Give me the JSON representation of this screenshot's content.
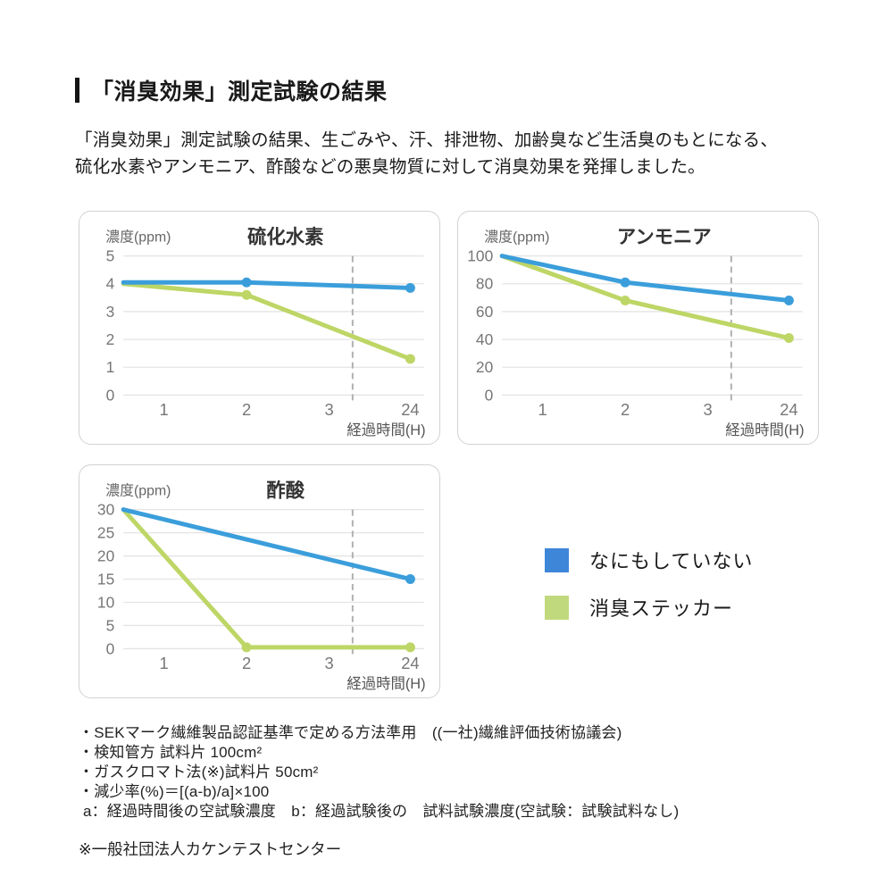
{
  "page": {
    "title": "「消臭効果」測定試験の結果",
    "intro_line1": "「消臭効果」測定試験の結果、生ごみや、汗、排泄物、加齢臭など生活臭のもとになる、",
    "intro_line2": "硫化水素やアンモニア、酢酸などの悪臭物質に対して消臭効果を発揮しました。"
  },
  "colors": {
    "blue": "#3B9EDB",
    "green": "#BDD666",
    "legend_blue": "#3E86D8",
    "legend_green": "#C1D97D",
    "grid": "#E4E4E4",
    "dashed": "#B0B0B0",
    "axis_text": "#777777",
    "unit_text": "#666666",
    "title_text": "#333333",
    "card_border": "#D2D2D2"
  },
  "legend": {
    "items": [
      {
        "label": "なにもしていない",
        "color": "#3E86D8"
      },
      {
        "label": "消臭ステッカー",
        "color": "#C1D97D"
      }
    ]
  },
  "chart_data": [
    {
      "type": "line",
      "key": "hydrogen-sulfide",
      "title": "硫化水素",
      "ylabel": "濃度(ppm)",
      "xlabel": "経過時間(H)",
      "x_ticks": [
        "1",
        "2",
        "3",
        "24"
      ],
      "y_ticks": [
        0,
        1,
        2,
        3,
        4,
        5
      ],
      "ylim": [
        0,
        5
      ],
      "dashed_guide": "vertical dashed line between 3 and 24",
      "series": [
        {
          "name": "なにもしていない",
          "color": "blue",
          "points": [
            {
              "x": "start",
              "y": 4.05
            },
            {
              "x": "2",
              "y": 4.05,
              "marker": true
            },
            {
              "x": "24",
              "y": 3.85,
              "marker": true
            }
          ]
        },
        {
          "name": "消臭ステッカー",
          "color": "green",
          "points": [
            {
              "x": "start",
              "y": 4.0
            },
            {
              "x": "2",
              "y": 3.6,
              "marker": true
            },
            {
              "x": "24",
              "y": 1.3,
              "marker": true
            }
          ]
        }
      ]
    },
    {
      "type": "line",
      "key": "ammonia",
      "title": "アンモニア",
      "ylabel": "濃度(ppm)",
      "xlabel": "経過時間(H)",
      "x_ticks": [
        "1",
        "2",
        "3",
        "24"
      ],
      "y_ticks": [
        0,
        20,
        40,
        60,
        80,
        100
      ],
      "ylim": [
        0,
        100
      ],
      "dashed_guide": "vertical dashed line between 3 and 24",
      "series": [
        {
          "name": "なにもしていない",
          "color": "blue",
          "points": [
            {
              "x": "start",
              "y": 100
            },
            {
              "x": "2",
              "y": 81,
              "marker": true
            },
            {
              "x": "24",
              "y": 68,
              "marker": true
            }
          ]
        },
        {
          "name": "消臭ステッカー",
          "color": "green",
          "points": [
            {
              "x": "start",
              "y": 100
            },
            {
              "x": "2",
              "y": 68,
              "marker": true
            },
            {
              "x": "24",
              "y": 41,
              "marker": true
            }
          ]
        }
      ]
    },
    {
      "type": "line",
      "key": "acetic-acid",
      "title": "酢酸",
      "ylabel": "濃度(ppm)",
      "xlabel": "経過時間(H)",
      "x_ticks": [
        "1",
        "2",
        "3",
        "24"
      ],
      "y_ticks": [
        0,
        5,
        10,
        15,
        20,
        25,
        30
      ],
      "ylim": [
        0,
        30
      ],
      "dashed_guide": "vertical dashed line between 3 and 24",
      "series": [
        {
          "name": "なにもしていない",
          "color": "blue",
          "points": [
            {
              "x": "start",
              "y": 30
            },
            {
              "x": "24",
              "y": 15,
              "marker": true
            }
          ]
        },
        {
          "name": "消臭ステッカー",
          "color": "green",
          "points": [
            {
              "x": "start",
              "y": 30
            },
            {
              "x": "2",
              "y": 0.3,
              "marker": true
            },
            {
              "x": "24",
              "y": 0.3,
              "marker": true
            }
          ]
        }
      ]
    }
  ],
  "footnotes": {
    "items": [
      "・SEKマーク繊維製品認証基準で定める方法準用　((一社)繊維評価技術協議会)",
      "・検知管方 試料片 100cm²",
      "・ガスクロマト法(※)試料片 50cm²",
      "・減少率(%)＝[(a-b)/a]×100",
      " a：経過時間後の空試験濃度　b：経過試験後の　試料試験濃度(空試験：試験試料なし)"
    ],
    "note": "※一般社団法人カケンテストセンター"
  }
}
